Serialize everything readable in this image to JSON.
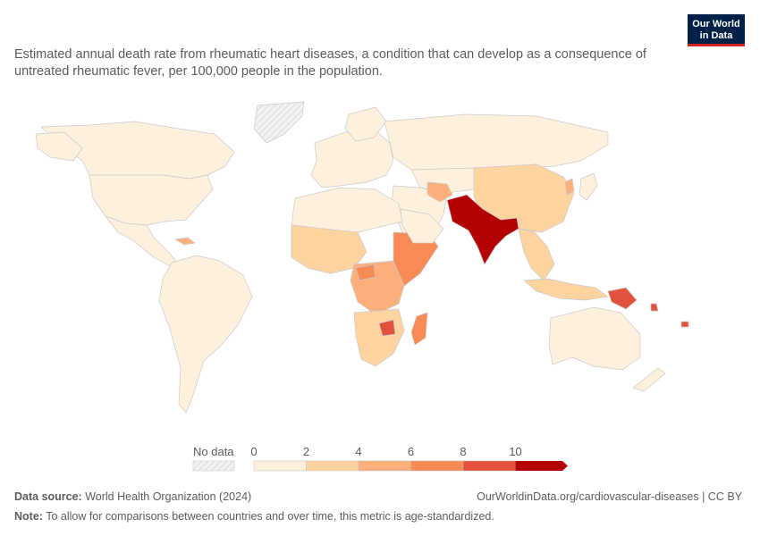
{
  "subtitle": "Estimated annual death rate from rheumatic heart diseases, a condition that can develop as a consequence of untreated rheumatic fever, per 100,000 people in the population.",
  "logo": {
    "line1": "Our World",
    "line2": "in Data"
  },
  "legend": {
    "no_data_label": "No data",
    "ticks": [
      "0",
      "2",
      "4",
      "6",
      "8",
      "10"
    ],
    "colors": [
      "#fdf0dc",
      "#fdd3a0",
      "#fbb07c",
      "#f88a55",
      "#e3513c",
      "#b30000"
    ]
  },
  "map_colors": {
    "ocean": "#ffffff",
    "low": "#fdf0dc",
    "band2": "#fdd3a0",
    "band3": "#fbb07c",
    "band4": "#f88a55",
    "band5": "#e3513c",
    "high": "#b30000",
    "border": "#c9c9c9",
    "no_data_fill": "#e8e8e8"
  },
  "footer": {
    "source_label": "Data source:",
    "source_value": "World Health Organization (2024)",
    "url": "OurWorldinData.org/cardiovascular-diseases | CC BY",
    "note_label": "Note:",
    "note_value": "To allow for comparisons between countries and over time, this metric is age-standardized."
  }
}
